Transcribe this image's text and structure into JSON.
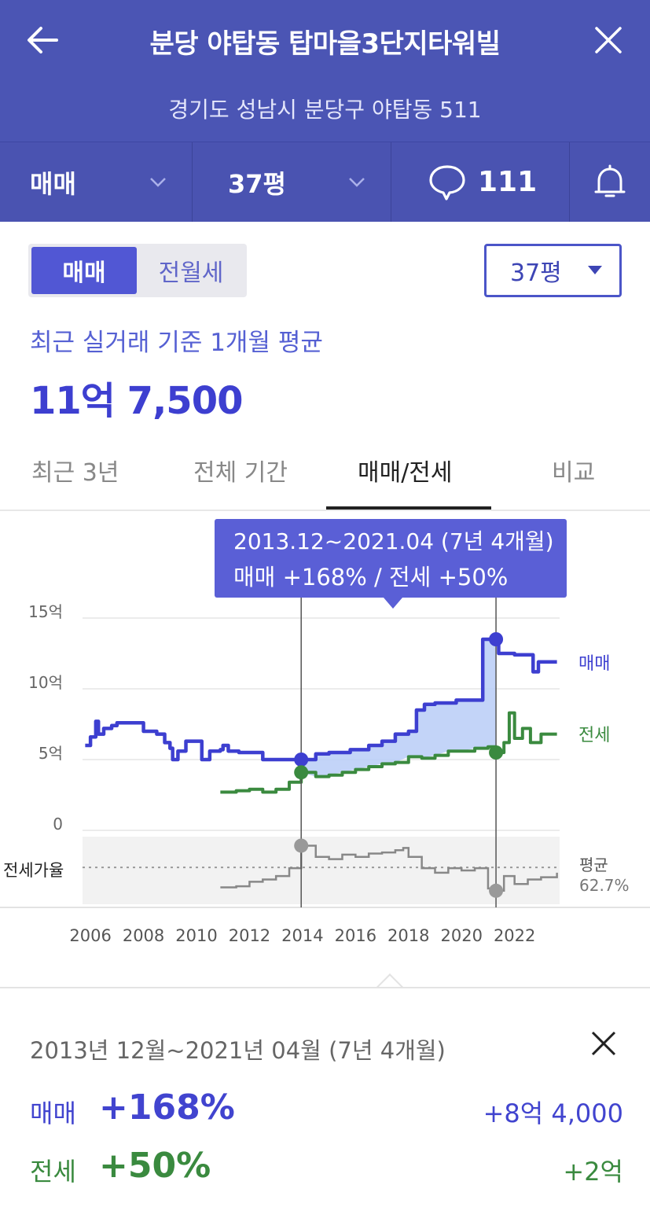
{
  "header": {
    "title": "분당 야탑동 탑마을3단지타워빌",
    "address": "경기도 성남시 분당구 야탑동 511",
    "filters": {
      "deal_type": "매매",
      "area": "37평",
      "comment_count": "111"
    }
  },
  "toggle": {
    "options": [
      "매매",
      "전월세"
    ],
    "selected": "매매",
    "area_select": "37평"
  },
  "summary_top": {
    "avg_label": "최근 실거래 기준 1개월 평균",
    "avg_price": "11억 7,500"
  },
  "tabs": [
    "최근 3년",
    "전체 기간",
    "매매/전세",
    "비교"
  ],
  "active_tab": "매매/전세",
  "tooltip": {
    "line1": "2013.12~2021.04 (7년 4개월)",
    "line2": "매매 +168%  /  전세 +50%"
  },
  "chart_data": {
    "type": "line",
    "x_ticks": [
      "2006",
      "2008",
      "2010",
      "2012",
      "2014",
      "2016",
      "2018",
      "2020",
      "2022"
    ],
    "y_ticks": [
      "15억",
      "10억",
      "5억",
      "0"
    ],
    "ylim": [
      0,
      15
    ],
    "xlim": [
      2005.7,
      2023.7
    ],
    "series": [
      {
        "name": "매매",
        "color": "#3d3fd0",
        "points": [
          [
            2005.8,
            6.0
          ],
          [
            2006.0,
            6.6
          ],
          [
            2006.2,
            7.7
          ],
          [
            2006.3,
            6.8
          ],
          [
            2006.5,
            7.2
          ],
          [
            2006.8,
            7.4
          ],
          [
            2007.0,
            7.6
          ],
          [
            2007.5,
            7.6
          ],
          [
            2008.0,
            7.0
          ],
          [
            2008.5,
            6.8
          ],
          [
            2008.8,
            6.2
          ],
          [
            2009.0,
            5.8
          ],
          [
            2009.1,
            5.0
          ],
          [
            2009.3,
            5.6
          ],
          [
            2009.6,
            6.3
          ],
          [
            2010.0,
            6.3
          ],
          [
            2010.2,
            5.0
          ],
          [
            2010.5,
            5.6
          ],
          [
            2010.9,
            5.7
          ],
          [
            2011.0,
            6.0
          ],
          [
            2011.2,
            5.6
          ],
          [
            2011.6,
            5.5
          ],
          [
            2012.0,
            5.5
          ],
          [
            2012.5,
            5.0
          ],
          [
            2013.0,
            5.0
          ],
          [
            2013.95,
            5.0
          ],
          [
            2014.5,
            5.4
          ],
          [
            2015.0,
            5.5
          ],
          [
            2015.8,
            5.7
          ],
          [
            2016.5,
            6.0
          ],
          [
            2017.0,
            6.3
          ],
          [
            2017.5,
            6.8
          ],
          [
            2018.0,
            7.0
          ],
          [
            2018.3,
            8.5
          ],
          [
            2018.6,
            8.9
          ],
          [
            2019.0,
            9.0
          ],
          [
            2019.5,
            9.0
          ],
          [
            2019.8,
            9.2
          ],
          [
            2020.5,
            9.2
          ],
          [
            2020.8,
            13.5
          ],
          [
            2021.3,
            13.5
          ],
          [
            2021.4,
            12.5
          ],
          [
            2022.0,
            12.4
          ],
          [
            2022.6,
            12.4
          ],
          [
            2022.7,
            11.2
          ],
          [
            2022.9,
            11.9
          ],
          [
            2023.6,
            11.9
          ]
        ]
      },
      {
        "name": "전세",
        "color": "#3a8a3f",
        "points": [
          [
            2010.9,
            2.7
          ],
          [
            2011.5,
            2.8
          ],
          [
            2012.0,
            2.9
          ],
          [
            2012.5,
            2.7
          ],
          [
            2013.0,
            2.9
          ],
          [
            2013.5,
            3.4
          ],
          [
            2013.95,
            4.1
          ],
          [
            2014.5,
            3.8
          ],
          [
            2015.0,
            3.9
          ],
          [
            2015.5,
            4.1
          ],
          [
            2016.0,
            4.3
          ],
          [
            2016.5,
            4.5
          ],
          [
            2017.0,
            4.7
          ],
          [
            2017.5,
            4.8
          ],
          [
            2018.0,
            5.2
          ],
          [
            2018.5,
            5.1
          ],
          [
            2019.0,
            5.3
          ],
          [
            2019.5,
            5.6
          ],
          [
            2020.0,
            5.6
          ],
          [
            2020.5,
            5.8
          ],
          [
            2021.0,
            5.9
          ],
          [
            2021.3,
            5.5
          ],
          [
            2021.6,
            6.2
          ],
          [
            2021.8,
            8.3
          ],
          [
            2022.0,
            6.5
          ],
          [
            2022.3,
            7.2
          ],
          [
            2022.6,
            6.2
          ],
          [
            2023.0,
            6.8
          ],
          [
            2023.6,
            6.8
          ]
        ]
      }
    ],
    "ratio_series": {
      "name": "전세가율",
      "avg_label": "평균",
      "avg_value": "62.7%",
      "points": [
        [
          2010.9,
          45
        ],
        [
          2011.5,
          46
        ],
        [
          2012.0,
          50
        ],
        [
          2012.5,
          52
        ],
        [
          2013.0,
          55
        ],
        [
          2013.5,
          62
        ],
        [
          2013.95,
          82
        ],
        [
          2014.5,
          72
        ],
        [
          2015.0,
          70
        ],
        [
          2015.5,
          74
        ],
        [
          2016.0,
          72
        ],
        [
          2016.5,
          75
        ],
        [
          2017.0,
          76
        ],
        [
          2017.5,
          78
        ],
        [
          2017.8,
          80
        ],
        [
          2018.0,
          72
        ],
        [
          2018.5,
          62
        ],
        [
          2019.0,
          58
        ],
        [
          2019.5,
          62
        ],
        [
          2020.0,
          60
        ],
        [
          2020.5,
          62
        ],
        [
          2021.0,
          44
        ],
        [
          2021.3,
          42
        ],
        [
          2021.6,
          55
        ],
        [
          2022.0,
          48
        ],
        [
          2022.5,
          52
        ],
        [
          2023.0,
          54
        ],
        [
          2023.6,
          58
        ]
      ]
    },
    "labels": {
      "maemae": "매매",
      "jeonse": "전세",
      "ratio": "전세가율"
    },
    "markers": [
      2013.95,
      2021.3
    ]
  },
  "summary": {
    "period": "2013년 12월~2021년 04월 (7년 4개월)",
    "rows": [
      {
        "label": "매매",
        "pct": "+168%",
        "amount": "+8억 4,000"
      },
      {
        "label": "전세",
        "pct": "+50%",
        "amount": "+2억"
      }
    ]
  },
  "colors": {
    "header_bg": "#4b55b4",
    "accent": "#3d3fd0",
    "green": "#3a8a3f"
  }
}
